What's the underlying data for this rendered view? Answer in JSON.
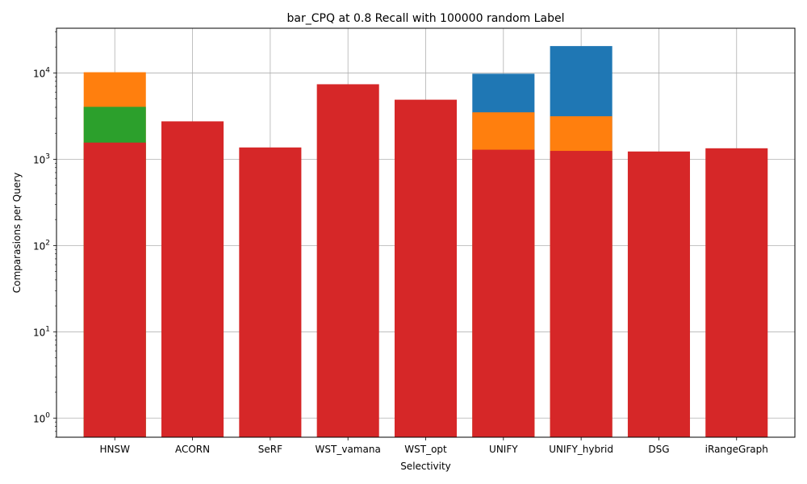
{
  "chart_data": {
    "type": "bar",
    "stacking": "overlaid",
    "title": "bar_CPQ at 0.8 Recall with 100000 random Label",
    "xlabel": "Selectivity",
    "ylabel": "Comparasions per Query",
    "yscale": "log",
    "ylim": [
      0.6,
      33000
    ],
    "grid": true,
    "categories": [
      "HNSW",
      "ACORN",
      "SeRF",
      "WST_vamana",
      "WST_opt",
      "UNIFY",
      "UNIFY_hybrid",
      "DSG",
      "iRangeGraph"
    ],
    "yticks": [
      {
        "value": 1,
        "base": "10",
        "exp": "0"
      },
      {
        "value": 10,
        "base": "10",
        "exp": "1"
      },
      {
        "value": 100,
        "base": "10",
        "exp": "2"
      },
      {
        "value": 1000,
        "base": "10",
        "exp": "3"
      },
      {
        "value": 10000,
        "base": "10",
        "exp": "4"
      }
    ],
    "series": [
      {
        "color": "#1f77b4",
        "values": [
          null,
          null,
          null,
          null,
          null,
          9800,
          20500,
          null,
          null
        ]
      },
      {
        "color": "#ff7f0e",
        "values": [
          10200,
          null,
          null,
          null,
          null,
          3500,
          3150,
          null,
          null
        ]
      },
      {
        "color": "#2ca02c",
        "values": [
          4050,
          null,
          null,
          null,
          null,
          null,
          null,
          null,
          null
        ]
      },
      {
        "color": "#d62728",
        "values": [
          1560,
          2750,
          1370,
          7400,
          4900,
          1290,
          1250,
          1230,
          1340
        ]
      }
    ]
  }
}
